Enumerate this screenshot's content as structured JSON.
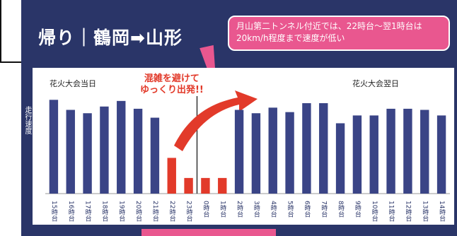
{
  "title": "帰り｜鶴岡➡山形",
  "callout": "月山第二トンネル付近では、22時台〜翌1時台は20km/h程度まで速度が低い",
  "red_note": "混雑を避けて\nゆっくり出発!!",
  "label_left": "花火大会当日",
  "label_right": "花火大会翌日",
  "ylabel": "走行速度",
  "colors": {
    "bar_normal": "#3a4486",
    "bar_red": "#e23a2a",
    "panel": "#2a3568",
    "callout": "#e9578f"
  },
  "chart_data": {
    "type": "bar",
    "categories": [
      "15時台",
      "16時台",
      "17時台",
      "18時台",
      "19時台",
      "20時台",
      "21時台",
      "22時台",
      "23時台",
      "0時台",
      "1時台",
      "2時台",
      "3時台",
      "4時台",
      "5時台",
      "6時台",
      "7時台",
      "8時台",
      "9時台",
      "10時台",
      "11時台",
      "12時台",
      "13時台",
      "14時台"
    ],
    "values": [
      84,
      75,
      72,
      78,
      83,
      76,
      68,
      32,
      14,
      14,
      14,
      75,
      72,
      77,
      73,
      81,
      81,
      63,
      70,
      70,
      76,
      76,
      75,
      70
    ],
    "highlight": [
      false,
      false,
      false,
      false,
      false,
      false,
      false,
      true,
      true,
      true,
      true,
      false,
      false,
      false,
      false,
      false,
      false,
      false,
      false,
      false,
      false,
      false,
      false,
      false
    ],
    "divider_between": [
      8,
      9
    ],
    "ylim": [
      0,
      100
    ]
  }
}
